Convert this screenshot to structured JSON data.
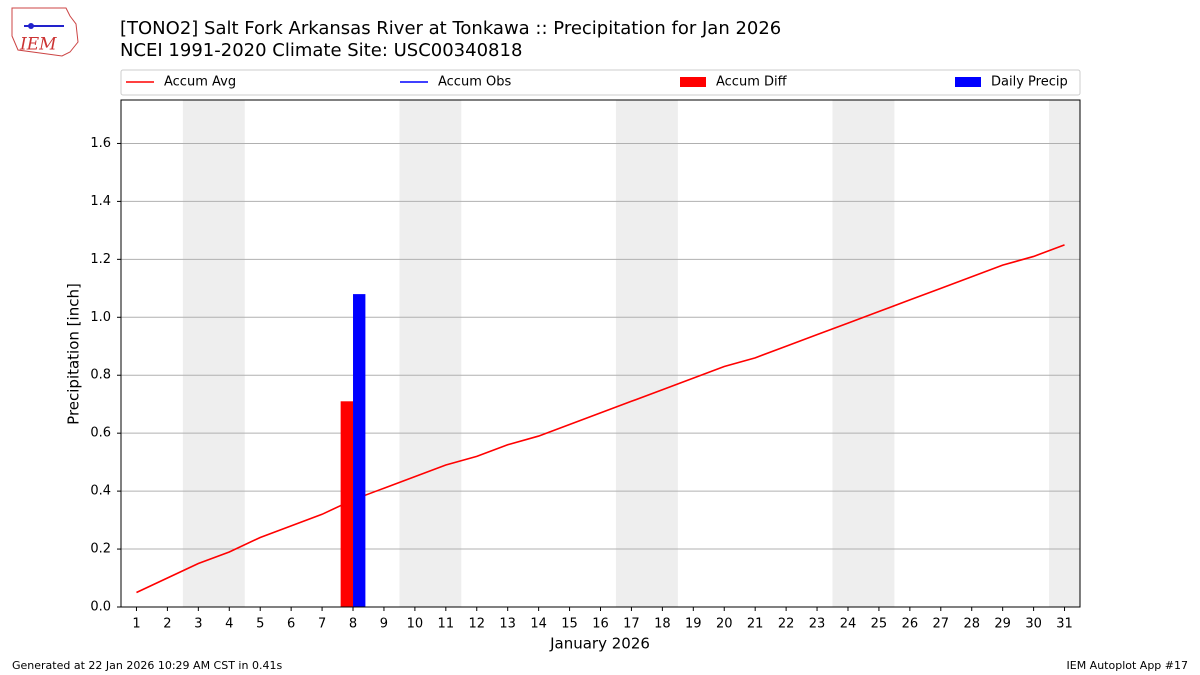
{
  "logo": {
    "text": "IEM"
  },
  "chart_data": {
    "type": "line",
    "title": "[TONO2] Salt Fork Arkansas River at Tonkawa :: Precipitation for Jan 2026",
    "subtitle": "NCEI 1991-2020 Climate Site: USC00340818",
    "x_label": "January 2026",
    "y_label": "Precipitation [inch]",
    "x": [
      1,
      2,
      3,
      4,
      5,
      6,
      7,
      8,
      9,
      10,
      11,
      12,
      13,
      14,
      15,
      16,
      17,
      18,
      19,
      20,
      21,
      22,
      23,
      24,
      25,
      26,
      27,
      28,
      29,
      30,
      31
    ],
    "xlim": [
      0.5,
      31.5
    ],
    "xticks": [
      1,
      2,
      3,
      4,
      5,
      6,
      7,
      8,
      9,
      10,
      11,
      12,
      13,
      14,
      15,
      16,
      17,
      18,
      19,
      20,
      21,
      22,
      23,
      24,
      25,
      26,
      27,
      28,
      29,
      30,
      31
    ],
    "ylim": [
      0,
      1.75
    ],
    "yticks": [
      {
        "value": 0,
        "label": "0.0"
      },
      0.2,
      0.4,
      0.6,
      0.8,
      {
        "value": 1,
        "label": "1.0"
      },
      1.2,
      1.4,
      1.6
    ],
    "grid": true,
    "weekend_spans": [
      [
        2.5,
        4.5
      ],
      [
        9.5,
        11.5
      ],
      [
        16.5,
        18.5
      ],
      [
        23.5,
        25.5
      ],
      [
        30.5,
        31.5
      ]
    ],
    "weekend_color": "#eeeeee",
    "series": [
      {
        "name": "Accum Avg",
        "kind": "line",
        "color": "#ff0000",
        "values": [
          0.05,
          0.1,
          0.15,
          0.19,
          0.24,
          0.28,
          0.32,
          0.37,
          0.41,
          0.45,
          0.49,
          0.52,
          0.56,
          0.59,
          0.63,
          0.67,
          0.71,
          0.75,
          0.79,
          0.83,
          0.86,
          0.9,
          0.94,
          0.98,
          1.02,
          1.06,
          1.1,
          1.14,
          1.18,
          1.21,
          1.25
        ]
      },
      {
        "name": "Accum Obs",
        "kind": "line",
        "color": "#0000ff",
        "values": [
          null,
          null,
          null,
          null,
          null,
          null,
          null,
          null,
          null,
          null,
          null,
          null,
          null,
          null,
          null,
          null,
          null,
          null,
          null,
          null,
          null,
          null,
          null,
          null,
          null,
          null,
          null,
          null,
          null,
          null,
          null
        ]
      },
      {
        "name": "Accum Diff",
        "kind": "bar",
        "color": "#ff0000",
        "offset": -0.2,
        "width": 0.4,
        "values": [
          null,
          null,
          null,
          null,
          null,
          null,
          null,
          0.71,
          null,
          null,
          null,
          null,
          null,
          null,
          null,
          null,
          null,
          null,
          null,
          null,
          null,
          null,
          null,
          null,
          null,
          null,
          null,
          null,
          null,
          null,
          null
        ]
      },
      {
        "name": "Daily Precip",
        "kind": "bar",
        "color": "#0000ff",
        "offset": 0.2,
        "width": 0.4,
        "values": [
          null,
          null,
          null,
          null,
          null,
          null,
          null,
          1.08,
          null,
          null,
          null,
          null,
          null,
          null,
          null,
          null,
          null,
          null,
          null,
          null,
          null,
          null,
          null,
          null,
          null,
          null,
          null,
          null,
          null,
          null,
          null
        ]
      }
    ]
  },
  "footer": {
    "left": "Generated at 22 Jan 2026 10:29 AM CST in 0.41s",
    "right": "IEM Autoplot App #17"
  }
}
